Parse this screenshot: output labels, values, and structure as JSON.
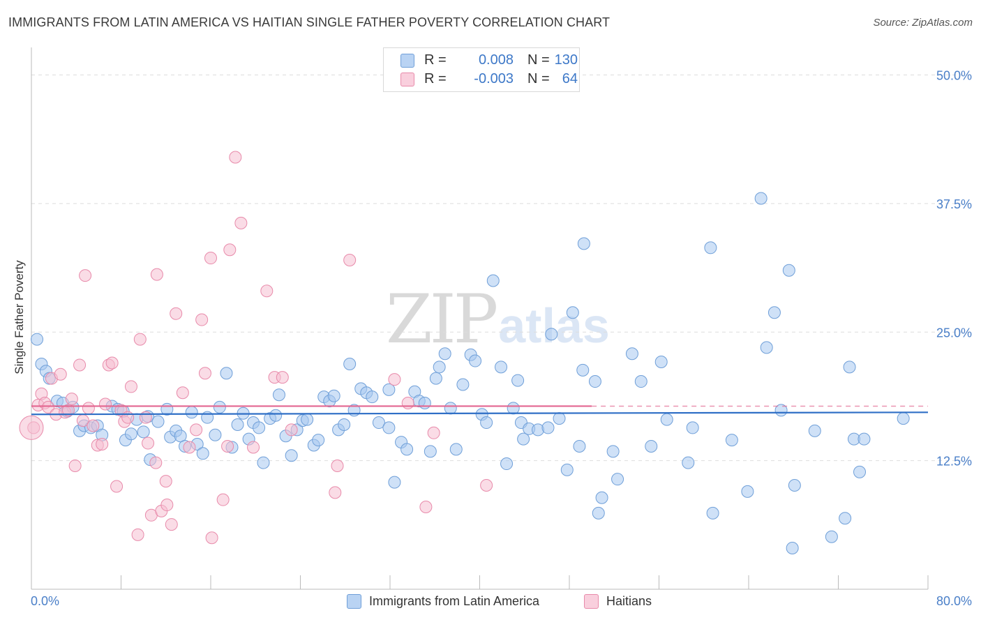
{
  "header": {
    "title": "IMMIGRANTS FROM LATIN AMERICA VS HAITIAN SINGLE FATHER POVERTY CORRELATION CHART",
    "source": "Source: ZipAtlas.com"
  },
  "watermark": {
    "zip": "ZIP",
    "atlas": "atlas"
  },
  "legend_top": {
    "rows": [
      {
        "r_label": "R =",
        "r_value": "0.008",
        "n_label": "N =",
        "n_value": "130"
      },
      {
        "r_label": "R =",
        "r_value": "-0.003",
        "n_label": "N =",
        "n_value": "64"
      }
    ]
  },
  "colors": {
    "blue_fill": "#a8c8f0",
    "blue_stroke": "#6f9fd8",
    "blue_line": "#2f6fc6",
    "pink_fill": "#f6bfd2",
    "pink_stroke": "#e88aaa",
    "pink_line": "#e36690",
    "axis_text": "#4a7fc8",
    "grid": "#dddddd"
  },
  "chart_data": {
    "type": "scatter",
    "title": "IMMIGRANTS FROM LATIN AMERICA VS HAITIAN SINGLE FATHER POVERTY CORRELATION CHART",
    "xlabel": "",
    "ylabel": "Single Father Poverty",
    "xlim": [
      0,
      80
    ],
    "ylim": [
      0,
      52
    ],
    "x_tick_labels": [
      "0.0%",
      "80.0%"
    ],
    "y_ticks": [
      12.5,
      25.0,
      37.5,
      50.0
    ],
    "y_tick_labels": [
      "12.5%",
      "25.0%",
      "37.5%",
      "50.0%"
    ],
    "grid": true,
    "legend_placement": "bottom-center",
    "series": [
      {
        "name": "Immigrants from Latin America",
        "color": "blue",
        "trend": {
          "x": [
            0,
            80
          ],
          "y": [
            17.0,
            17.2
          ]
        },
        "points": [
          [
            0.5,
            24.3
          ],
          [
            0.9,
            21.9
          ],
          [
            1.3,
            21.2
          ],
          [
            1.6,
            20.5
          ],
          [
            2.3,
            18.3
          ],
          [
            2.8,
            18.1
          ],
          [
            3.2,
            17.3
          ],
          [
            3.7,
            17.7
          ],
          [
            4.3,
            15.4
          ],
          [
            4.7,
            15.9
          ],
          [
            5.3,
            15.7
          ],
          [
            5.9,
            15.9
          ],
          [
            6.3,
            15.0
          ],
          [
            7.2,
            17.8
          ],
          [
            7.7,
            17.5
          ],
          [
            8.2,
            17.3
          ],
          [
            8.4,
            14.5
          ],
          [
            8.9,
            15.1
          ],
          [
            9.4,
            16.5
          ],
          [
            10.0,
            15.3
          ],
          [
            10.4,
            16.8
          ],
          [
            10.6,
            12.6
          ],
          [
            11.3,
            16.3
          ],
          [
            12.1,
            17.5
          ],
          [
            12.4,
            14.8
          ],
          [
            12.9,
            15.4
          ],
          [
            13.3,
            14.9
          ],
          [
            13.7,
            13.9
          ],
          [
            14.3,
            17.2
          ],
          [
            14.8,
            14.1
          ],
          [
            15.3,
            13.2
          ],
          [
            15.7,
            16.7
          ],
          [
            16.4,
            15.0
          ],
          [
            16.8,
            17.7
          ],
          [
            17.4,
            21.0
          ],
          [
            17.9,
            13.8
          ],
          [
            18.4,
            16.0
          ],
          [
            18.9,
            17.1
          ],
          [
            19.4,
            14.6
          ],
          [
            19.8,
            16.2
          ],
          [
            20.3,
            15.7
          ],
          [
            20.7,
            12.3
          ],
          [
            21.3,
            16.6
          ],
          [
            21.8,
            16.9
          ],
          [
            22.1,
            18.9
          ],
          [
            22.7,
            14.9
          ],
          [
            23.2,
            13.0
          ],
          [
            23.7,
            15.5
          ],
          [
            24.2,
            16.4
          ],
          [
            24.6,
            16.5
          ],
          [
            25.2,
            14.0
          ],
          [
            25.6,
            14.5
          ],
          [
            26.1,
            18.7
          ],
          [
            26.6,
            18.3
          ],
          [
            27.0,
            18.8
          ],
          [
            27.4,
            15.5
          ],
          [
            27.9,
            16.0
          ],
          [
            28.4,
            21.9
          ],
          [
            28.8,
            17.4
          ],
          [
            29.4,
            19.5
          ],
          [
            29.9,
            19.1
          ],
          [
            30.4,
            18.7
          ],
          [
            31.0,
            16.2
          ],
          [
            31.9,
            15.7
          ],
          [
            31.9,
            19.4
          ],
          [
            32.4,
            10.4
          ],
          [
            33.0,
            14.3
          ],
          [
            33.5,
            13.6
          ],
          [
            34.2,
            19.2
          ],
          [
            34.6,
            18.3
          ],
          [
            35.1,
            18.1
          ],
          [
            35.6,
            13.4
          ],
          [
            36.1,
            20.5
          ],
          [
            36.4,
            21.6
          ],
          [
            36.9,
            22.9
          ],
          [
            37.4,
            17.6
          ],
          [
            37.9,
            13.6
          ],
          [
            38.5,
            19.9
          ],
          [
            39.2,
            22.8
          ],
          [
            39.6,
            22.2
          ],
          [
            40.2,
            17.0
          ],
          [
            40.6,
            16.2
          ],
          [
            41.2,
            30.0
          ],
          [
            41.9,
            21.6
          ],
          [
            42.4,
            12.2
          ],
          [
            43.0,
            17.6
          ],
          [
            43.4,
            20.3
          ],
          [
            43.7,
            16.2
          ],
          [
            43.9,
            14.6
          ],
          [
            44.4,
            15.6
          ],
          [
            45.2,
            15.5
          ],
          [
            46.1,
            15.7
          ],
          [
            46.4,
            24.8
          ],
          [
            47.1,
            16.6
          ],
          [
            47.8,
            11.6
          ],
          [
            48.3,
            26.9
          ],
          [
            48.9,
            13.9
          ],
          [
            49.2,
            21.3
          ],
          [
            49.3,
            33.6
          ],
          [
            50.3,
            20.2
          ],
          [
            50.6,
            7.4
          ],
          [
            50.9,
            8.9
          ],
          [
            51.9,
            13.4
          ],
          [
            52.3,
            10.7
          ],
          [
            53.6,
            22.9
          ],
          [
            54.4,
            20.2
          ],
          [
            55.3,
            13.9
          ],
          [
            56.2,
            22.1
          ],
          [
            56.7,
            16.5
          ],
          [
            58.6,
            12.3
          ],
          [
            59.0,
            15.7
          ],
          [
            60.6,
            33.2
          ],
          [
            60.8,
            7.4
          ],
          [
            62.5,
            14.5
          ],
          [
            63.9,
            9.5
          ],
          [
            65.1,
            38.0
          ],
          [
            65.6,
            23.5
          ],
          [
            66.3,
            26.9
          ],
          [
            66.9,
            17.4
          ],
          [
            67.6,
            31.0
          ],
          [
            67.9,
            4.0
          ],
          [
            68.1,
            10.1
          ],
          [
            69.9,
            15.4
          ],
          [
            71.4,
            5.1
          ],
          [
            72.6,
            6.9
          ],
          [
            73.0,
            21.6
          ],
          [
            73.4,
            14.6
          ],
          [
            73.9,
            11.4
          ],
          [
            74.3,
            14.6
          ],
          [
            77.8,
            16.6
          ]
        ]
      },
      {
        "name": "Haitians",
        "color": "pink",
        "trend": {
          "x": [
            0,
            50
          ],
          "y": [
            17.8,
            17.8
          ],
          "dashed_extension": {
            "x": [
              50,
              80
            ],
            "y": [
              17.8,
              17.8
            ]
          }
        },
        "points": [
          [
            0.2,
            15.7
          ],
          [
            0.6,
            17.9
          ],
          [
            0.9,
            19.0
          ],
          [
            1.2,
            18.1
          ],
          [
            1.5,
            17.7
          ],
          [
            1.8,
            20.5
          ],
          [
            2.2,
            17.0
          ],
          [
            2.6,
            20.9
          ],
          [
            3.0,
            17.2
          ],
          [
            3.3,
            17.4
          ],
          [
            3.6,
            18.5
          ],
          [
            3.9,
            12.0
          ],
          [
            4.3,
            21.8
          ],
          [
            4.6,
            16.4
          ],
          [
            4.8,
            30.5
          ],
          [
            5.1,
            17.6
          ],
          [
            5.5,
            15.9
          ],
          [
            5.9,
            14.0
          ],
          [
            6.3,
            14.1
          ],
          [
            6.6,
            18.0
          ],
          [
            6.9,
            21.8
          ],
          [
            7.2,
            22.0
          ],
          [
            7.6,
            10.0
          ],
          [
            8.0,
            17.4
          ],
          [
            8.3,
            16.3
          ],
          [
            8.6,
            16.7
          ],
          [
            8.9,
            19.7
          ],
          [
            9.5,
            5.3
          ],
          [
            9.7,
            24.3
          ],
          [
            10.2,
            16.7
          ],
          [
            10.4,
            14.2
          ],
          [
            10.7,
            7.2
          ],
          [
            11.1,
            12.3
          ],
          [
            11.2,
            30.6
          ],
          [
            11.6,
            7.6
          ],
          [
            12.0,
            10.5
          ],
          [
            12.1,
            8.2
          ],
          [
            12.5,
            6.3
          ],
          [
            12.9,
            26.8
          ],
          [
            13.5,
            19.1
          ],
          [
            14.1,
            13.8
          ],
          [
            14.7,
            15.5
          ],
          [
            15.2,
            26.2
          ],
          [
            15.5,
            21.0
          ],
          [
            16.0,
            32.2
          ],
          [
            16.1,
            5.0
          ],
          [
            17.1,
            8.7
          ],
          [
            17.5,
            13.9
          ],
          [
            17.7,
            33.0
          ],
          [
            18.2,
            42.0
          ],
          [
            18.7,
            35.6
          ],
          [
            19.8,
            13.8
          ],
          [
            21.0,
            29.0
          ],
          [
            21.7,
            20.6
          ],
          [
            22.4,
            20.6
          ],
          [
            23.2,
            15.5
          ],
          [
            27.1,
            9.4
          ],
          [
            27.3,
            12.0
          ],
          [
            28.4,
            32.0
          ],
          [
            32.4,
            20.4
          ],
          [
            33.6,
            18.1
          ],
          [
            35.2,
            8.0
          ],
          [
            35.9,
            15.2
          ],
          [
            40.6,
            10.1
          ]
        ]
      }
    ]
  },
  "axis": {
    "x_min_label": "0.0%",
    "x_max_label": "80.0%",
    "ylabel": "Single Father Poverty"
  },
  "legend_bottom": {
    "items": [
      {
        "label": "Immigrants from Latin America"
      },
      {
        "label": "Haitians"
      }
    ]
  }
}
